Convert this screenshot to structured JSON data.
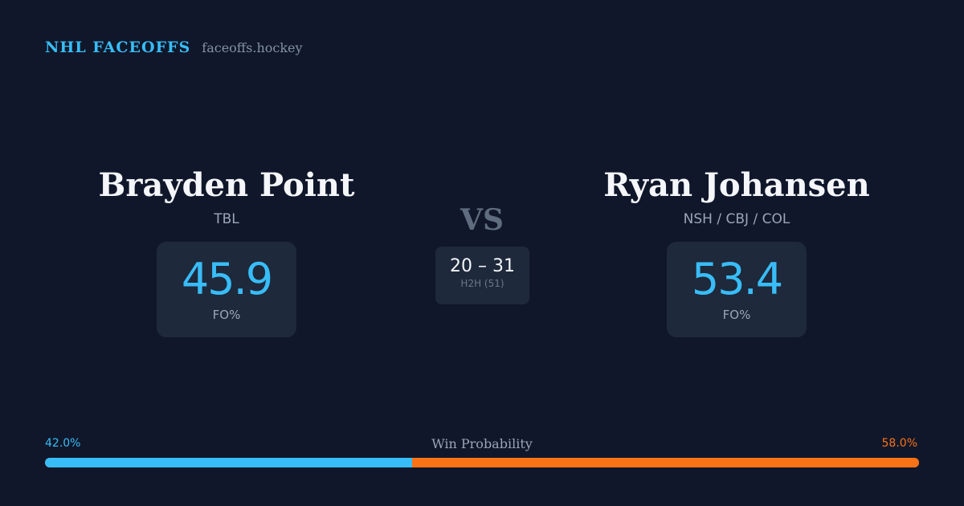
{
  "brand": {
    "name": "NHL FACEOFFS",
    "domain": "faceoffs.hockey"
  },
  "player_left": {
    "name": "Brayden Point",
    "team": "TBL",
    "fo_pct": "45.9",
    "fo_label": "FO%"
  },
  "player_right": {
    "name": "Ryan Johansen",
    "team": "NSH / CBJ / COL",
    "fo_pct": "53.4",
    "fo_label": "FO%"
  },
  "versus": "VS",
  "head_to_head": {
    "score": "20 – 31",
    "label": "H2H (51)"
  },
  "win_probability": {
    "title": "Win Probability",
    "left_label": "42.0%",
    "right_label": "58.0%",
    "left_fraction": 0.42,
    "right_fraction": 0.58
  },
  "colors": {
    "background": "#10172a",
    "card": "#1e293b",
    "accent_blue": "#38bdf8",
    "accent_orange": "#f97316"
  }
}
